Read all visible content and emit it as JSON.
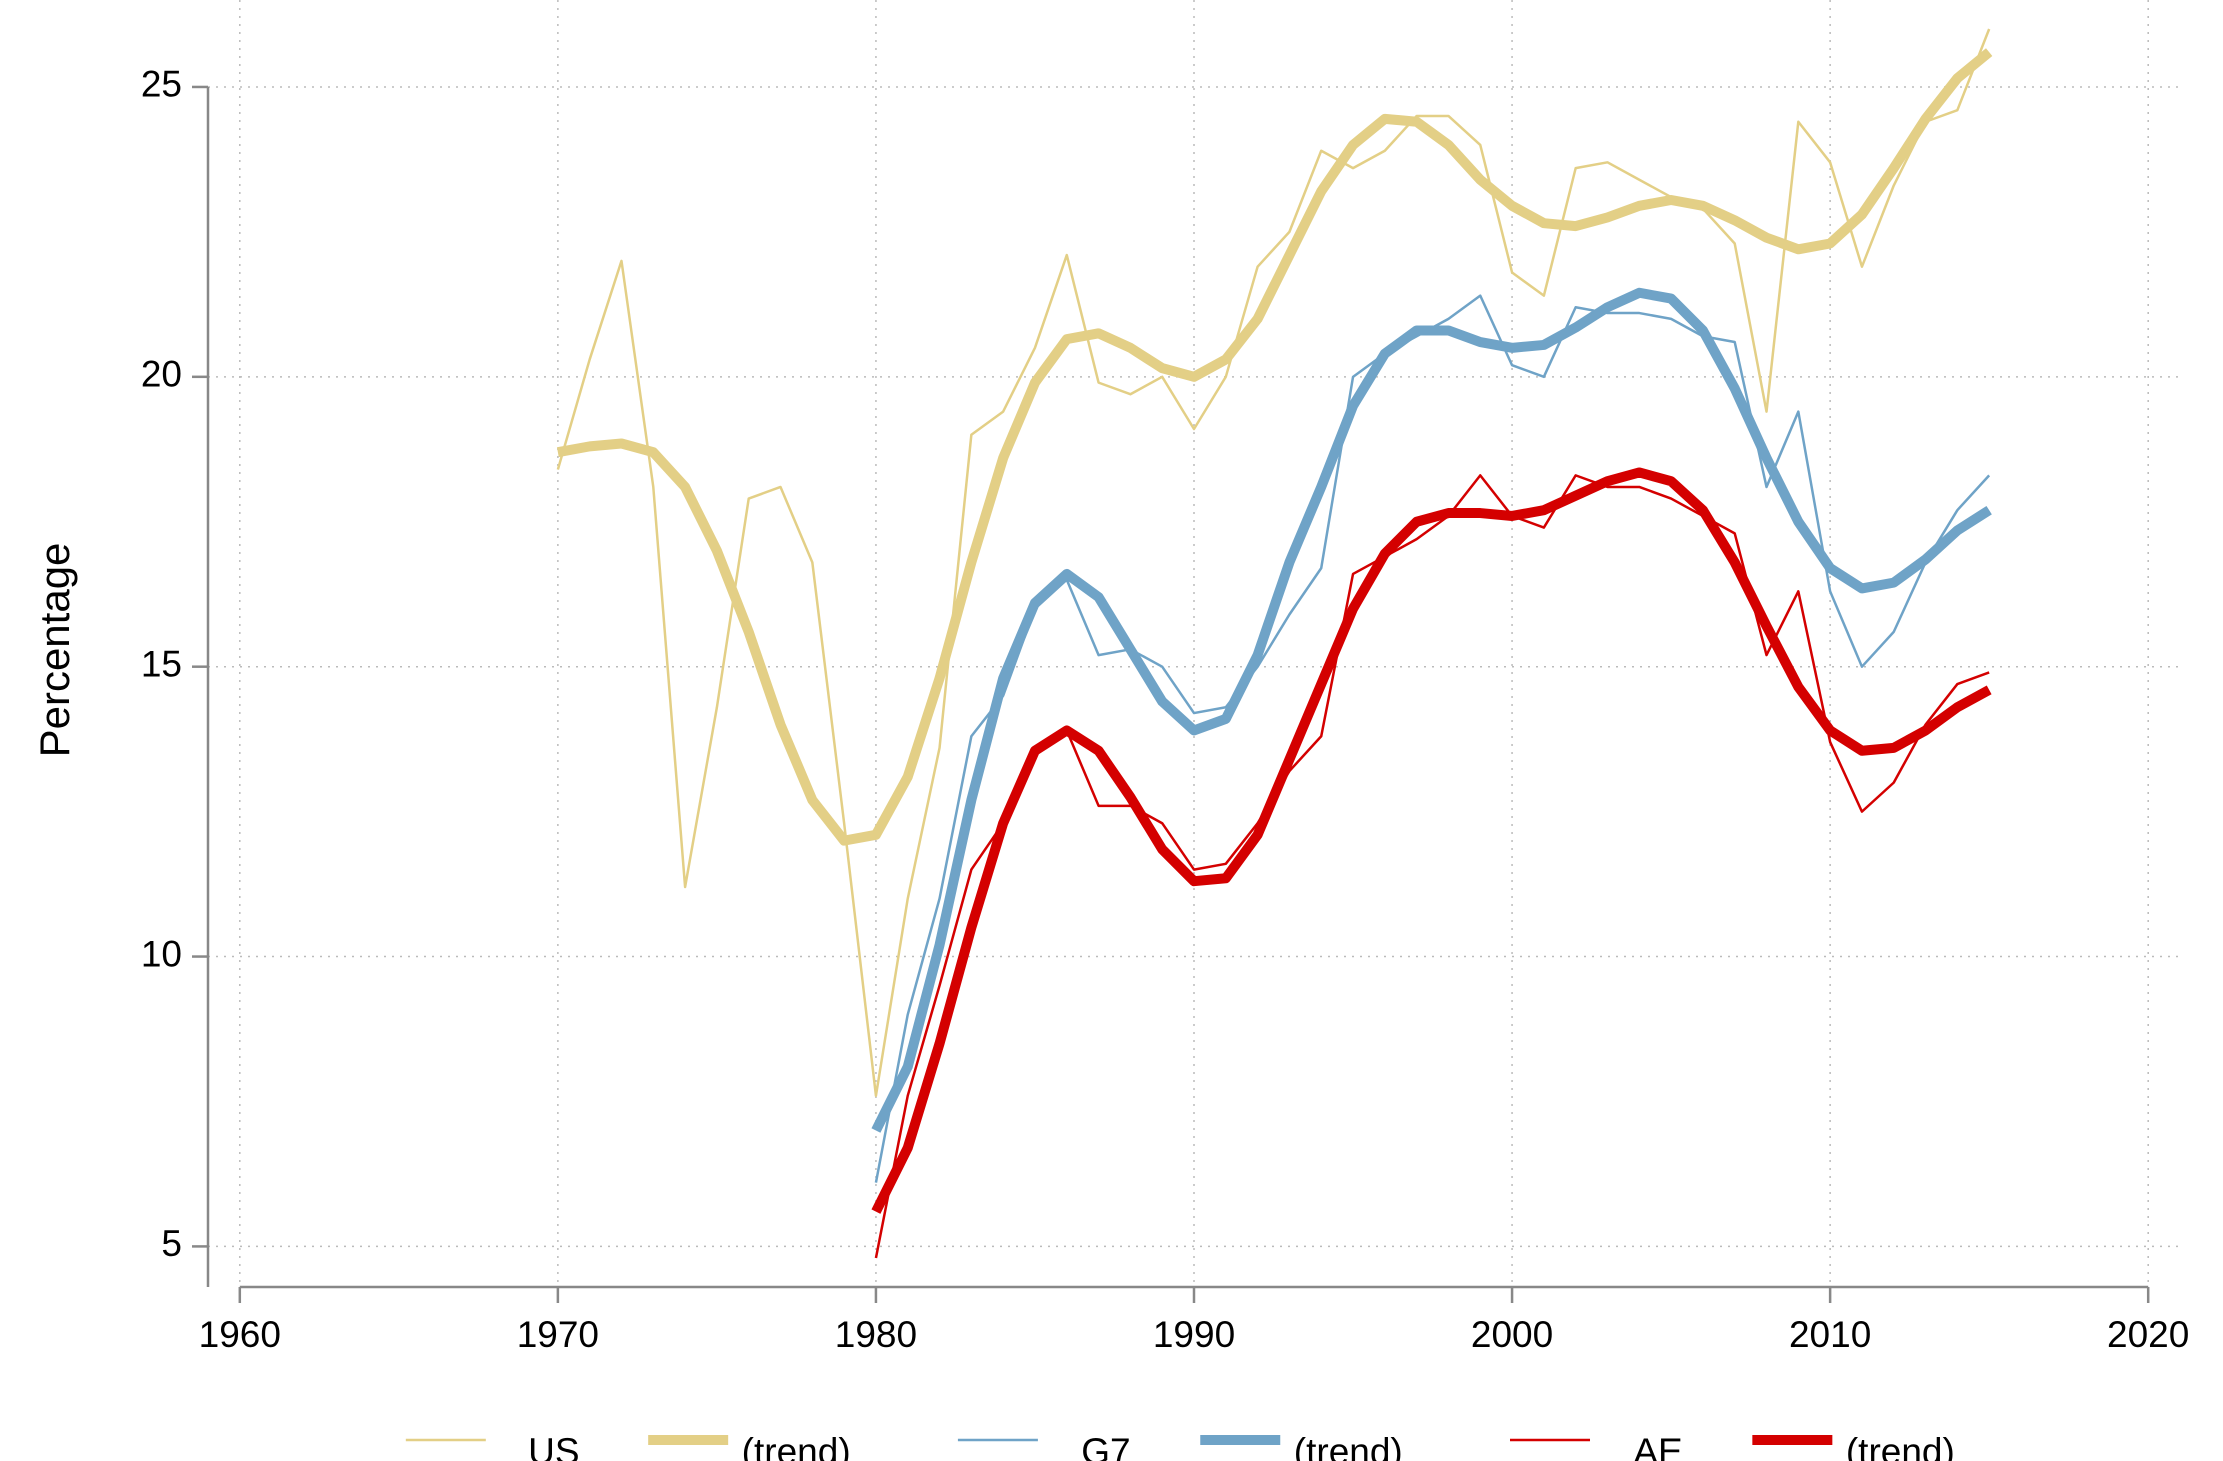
{
  "chart_data": {
    "type": "line",
    "y_label": "Percentage",
    "x": [
      1970,
      1971,
      1972,
      1973,
      1974,
      1975,
      1976,
      1977,
      1978,
      1979,
      1980,
      1981,
      1982,
      1983,
      1984,
      1985,
      1986,
      1987,
      1988,
      1989,
      1990,
      1991,
      1992,
      1993,
      1994,
      1995,
      1996,
      1997,
      1998,
      1999,
      2000,
      2001,
      2002,
      2003,
      2004,
      2005,
      2006,
      2007,
      2008,
      2009,
      2010,
      2011,
      2012,
      2013,
      2014,
      2015
    ],
    "xlim": [
      1959,
      2021
    ],
    "xticks": [
      1960,
      1970,
      1980,
      1990,
      2000,
      2010,
      2020
    ],
    "ylim": [
      4.3,
      26.5
    ],
    "yticks": [
      5,
      10,
      15,
      20,
      25
    ],
    "grid": true,
    "legend": "bottom",
    "series": [
      {
        "name": "US",
        "color": "#e3cf86",
        "values": [
          18.4,
          20.3,
          22.0,
          18.1,
          11.2,
          14.3,
          17.9,
          18.1,
          16.8,
          12.3,
          7.6,
          11.0,
          13.6,
          19.0,
          19.4,
          20.5,
          22.1,
          19.9,
          19.7,
          20.0,
          19.1,
          20.0,
          21.9,
          22.5,
          23.9,
          23.6,
          23.9,
          24.5,
          24.5,
          24.0,
          21.8,
          21.4,
          23.6,
          23.7,
          23.4,
          23.1,
          22.9,
          22.3,
          19.4,
          24.4,
          23.7,
          21.9,
          23.3,
          24.4,
          24.6,
          26.0
        ]
      },
      {
        "name": "(trend)",
        "color": "#e3cf86",
        "values": [
          18.7,
          18.8,
          18.85,
          18.7,
          18.1,
          17.0,
          15.6,
          14.0,
          12.7,
          12.0,
          12.1,
          13.1,
          14.8,
          16.8,
          18.6,
          19.9,
          20.65,
          20.75,
          20.5,
          20.15,
          20.0,
          20.3,
          21.0,
          22.1,
          23.2,
          24.0,
          24.45,
          24.4,
          24.0,
          23.4,
          22.95,
          22.65,
          22.6,
          22.75,
          22.95,
          23.05,
          22.95,
          22.7,
          22.4,
          22.2,
          22.3,
          22.8,
          23.6,
          24.45,
          25.15,
          25.6
        ]
      },
      {
        "name": "G7",
        "color": "#6fa3c7",
        "values": [
          null,
          null,
          null,
          null,
          null,
          null,
          null,
          null,
          null,
          null,
          6.1,
          9.0,
          11.0,
          13.8,
          14.5,
          16.0,
          16.5,
          15.2,
          15.3,
          15.0,
          14.2,
          14.3,
          15.0,
          15.9,
          16.7,
          20.0,
          20.4,
          20.7,
          21.0,
          21.4,
          20.2,
          20.0,
          21.2,
          21.1,
          21.1,
          21.0,
          20.7,
          20.6,
          18.1,
          19.4,
          16.3,
          15.0,
          15.6,
          16.8,
          17.7,
          18.3
        ]
      },
      {
        "name": "(trend)",
        "color": "#6fa3c7",
        "values": [
          null,
          null,
          null,
          null,
          null,
          null,
          null,
          null,
          null,
          null,
          7.0,
          8.1,
          10.2,
          12.7,
          14.8,
          16.1,
          16.6,
          16.2,
          15.3,
          14.4,
          13.9,
          14.1,
          15.2,
          16.8,
          18.1,
          19.5,
          20.4,
          20.8,
          20.8,
          20.6,
          20.5,
          20.55,
          20.85,
          21.2,
          21.45,
          21.35,
          20.8,
          19.8,
          18.6,
          17.5,
          16.7,
          16.35,
          16.45,
          16.85,
          17.35,
          17.7
        ]
      },
      {
        "name": "AE",
        "color": "#d40000",
        "values": [
          null,
          null,
          null,
          null,
          null,
          null,
          null,
          null,
          null,
          null,
          4.8,
          7.6,
          9.5,
          11.5,
          12.3,
          13.5,
          13.9,
          12.6,
          12.6,
          12.3,
          11.5,
          11.6,
          12.3,
          13.2,
          13.8,
          16.6,
          16.9,
          17.2,
          17.6,
          18.3,
          17.6,
          17.4,
          18.3,
          18.1,
          18.1,
          17.9,
          17.6,
          17.3,
          15.2,
          16.3,
          13.7,
          12.5,
          13.0,
          14.0,
          14.7,
          14.9
        ]
      },
      {
        "name": "(trend)",
        "color": "#d40000",
        "values": [
          null,
          null,
          null,
          null,
          null,
          null,
          null,
          null,
          null,
          null,
          5.6,
          6.7,
          8.5,
          10.5,
          12.3,
          13.55,
          13.9,
          13.55,
          12.75,
          11.85,
          11.3,
          11.35,
          12.1,
          13.4,
          14.7,
          16.0,
          16.95,
          17.5,
          17.65,
          17.65,
          17.6,
          17.7,
          17.95,
          18.2,
          18.35,
          18.2,
          17.7,
          16.8,
          15.7,
          14.65,
          13.9,
          13.55,
          13.6,
          13.9,
          14.3,
          14.6
        ]
      }
    ]
  }
}
